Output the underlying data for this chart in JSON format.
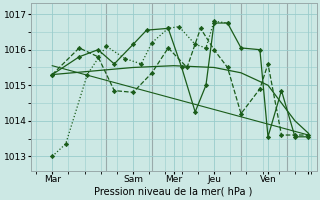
{
  "background_color": "#cce8e4",
  "grid_color": "#99cccc",
  "line_color": "#1a5c1a",
  "xlabel": "Pression niveau de la mer( hPa )",
  "ylim": [
    1012.6,
    1017.3
  ],
  "yticks": [
    1013,
    1014,
    1015,
    1016,
    1017
  ],
  "xlim": [
    -0.3,
    10.3
  ],
  "xtick_positions": [
    0.5,
    3.5,
    5.0,
    6.5,
    8.5,
    10.0
  ],
  "xtick_labels": [
    "Mar",
    "Sam",
    "Mer",
    "Jeu",
    "Ven",
    ""
  ],
  "vlines_x": [
    2.5,
    4.2,
    7.5,
    9.2
  ],
  "lines": [
    {
      "x": [
        0.5,
        1.0,
        1.8,
        2.5,
        3.2,
        3.8,
        4.2,
        4.8,
        5.2,
        5.8,
        6.2,
        6.5,
        7.0
      ],
      "y": [
        1013.0,
        1013.35,
        1015.3,
        1016.1,
        1015.75,
        1015.6,
        1016.2,
        1016.6,
        1016.65,
        1016.15,
        1016.05,
        1016.8,
        1016.75
      ],
      "linestyle": ":",
      "linewidth": 0.9,
      "marker": "D",
      "ms": 2.2
    },
    {
      "x": [
        0.5,
        3.5,
        5.0,
        6.5,
        7.5,
        8.5,
        9.0,
        9.5,
        10.0
      ],
      "y": [
        1015.3,
        1015.5,
        1015.55,
        1015.5,
        1015.35,
        1015.0,
        1014.5,
        1014.0,
        1013.65
      ],
      "linestyle": "-",
      "linewidth": 0.9,
      "marker": null,
      "ms": 0
    },
    {
      "x": [
        0.5,
        1.5,
        2.2,
        2.8,
        3.5,
        4.2,
        4.8,
        5.5,
        6.0,
        6.5,
        7.0,
        7.5,
        8.2,
        8.5,
        9.0,
        9.5,
        10.0
      ],
      "y": [
        1015.3,
        1016.05,
        1015.8,
        1014.85,
        1014.8,
        1015.35,
        1016.05,
        1015.5,
        1016.6,
        1016.0,
        1015.5,
        1014.2,
        1014.9,
        1015.6,
        1013.6,
        1013.6,
        1013.6
      ],
      "linestyle": "--",
      "linewidth": 0.9,
      "marker": "D",
      "ms": 2.2
    },
    {
      "x": [
        0.5,
        1.5,
        2.2,
        2.8,
        3.5,
        4.0,
        4.8,
        5.3,
        5.8,
        6.2,
        6.5,
        7.0,
        7.5,
        8.2,
        8.5,
        9.0,
        9.5,
        10.0
      ],
      "y": [
        1015.3,
        1015.8,
        1016.0,
        1015.6,
        1016.15,
        1016.55,
        1016.6,
        1015.5,
        1014.25,
        1015.0,
        1016.75,
        1016.75,
        1016.05,
        1016.0,
        1013.55,
        1014.85,
        1013.55,
        1013.55
      ],
      "linestyle": "-",
      "linewidth": 0.9,
      "marker": "D",
      "ms": 2.2
    },
    {
      "x": [
        0.5,
        10.0
      ],
      "y": [
        1015.55,
        1013.6
      ],
      "linestyle": "-",
      "linewidth": 0.8,
      "marker": null,
      "ms": 0
    }
  ],
  "figsize": [
    3.2,
    2.0
  ],
  "dpi": 100
}
